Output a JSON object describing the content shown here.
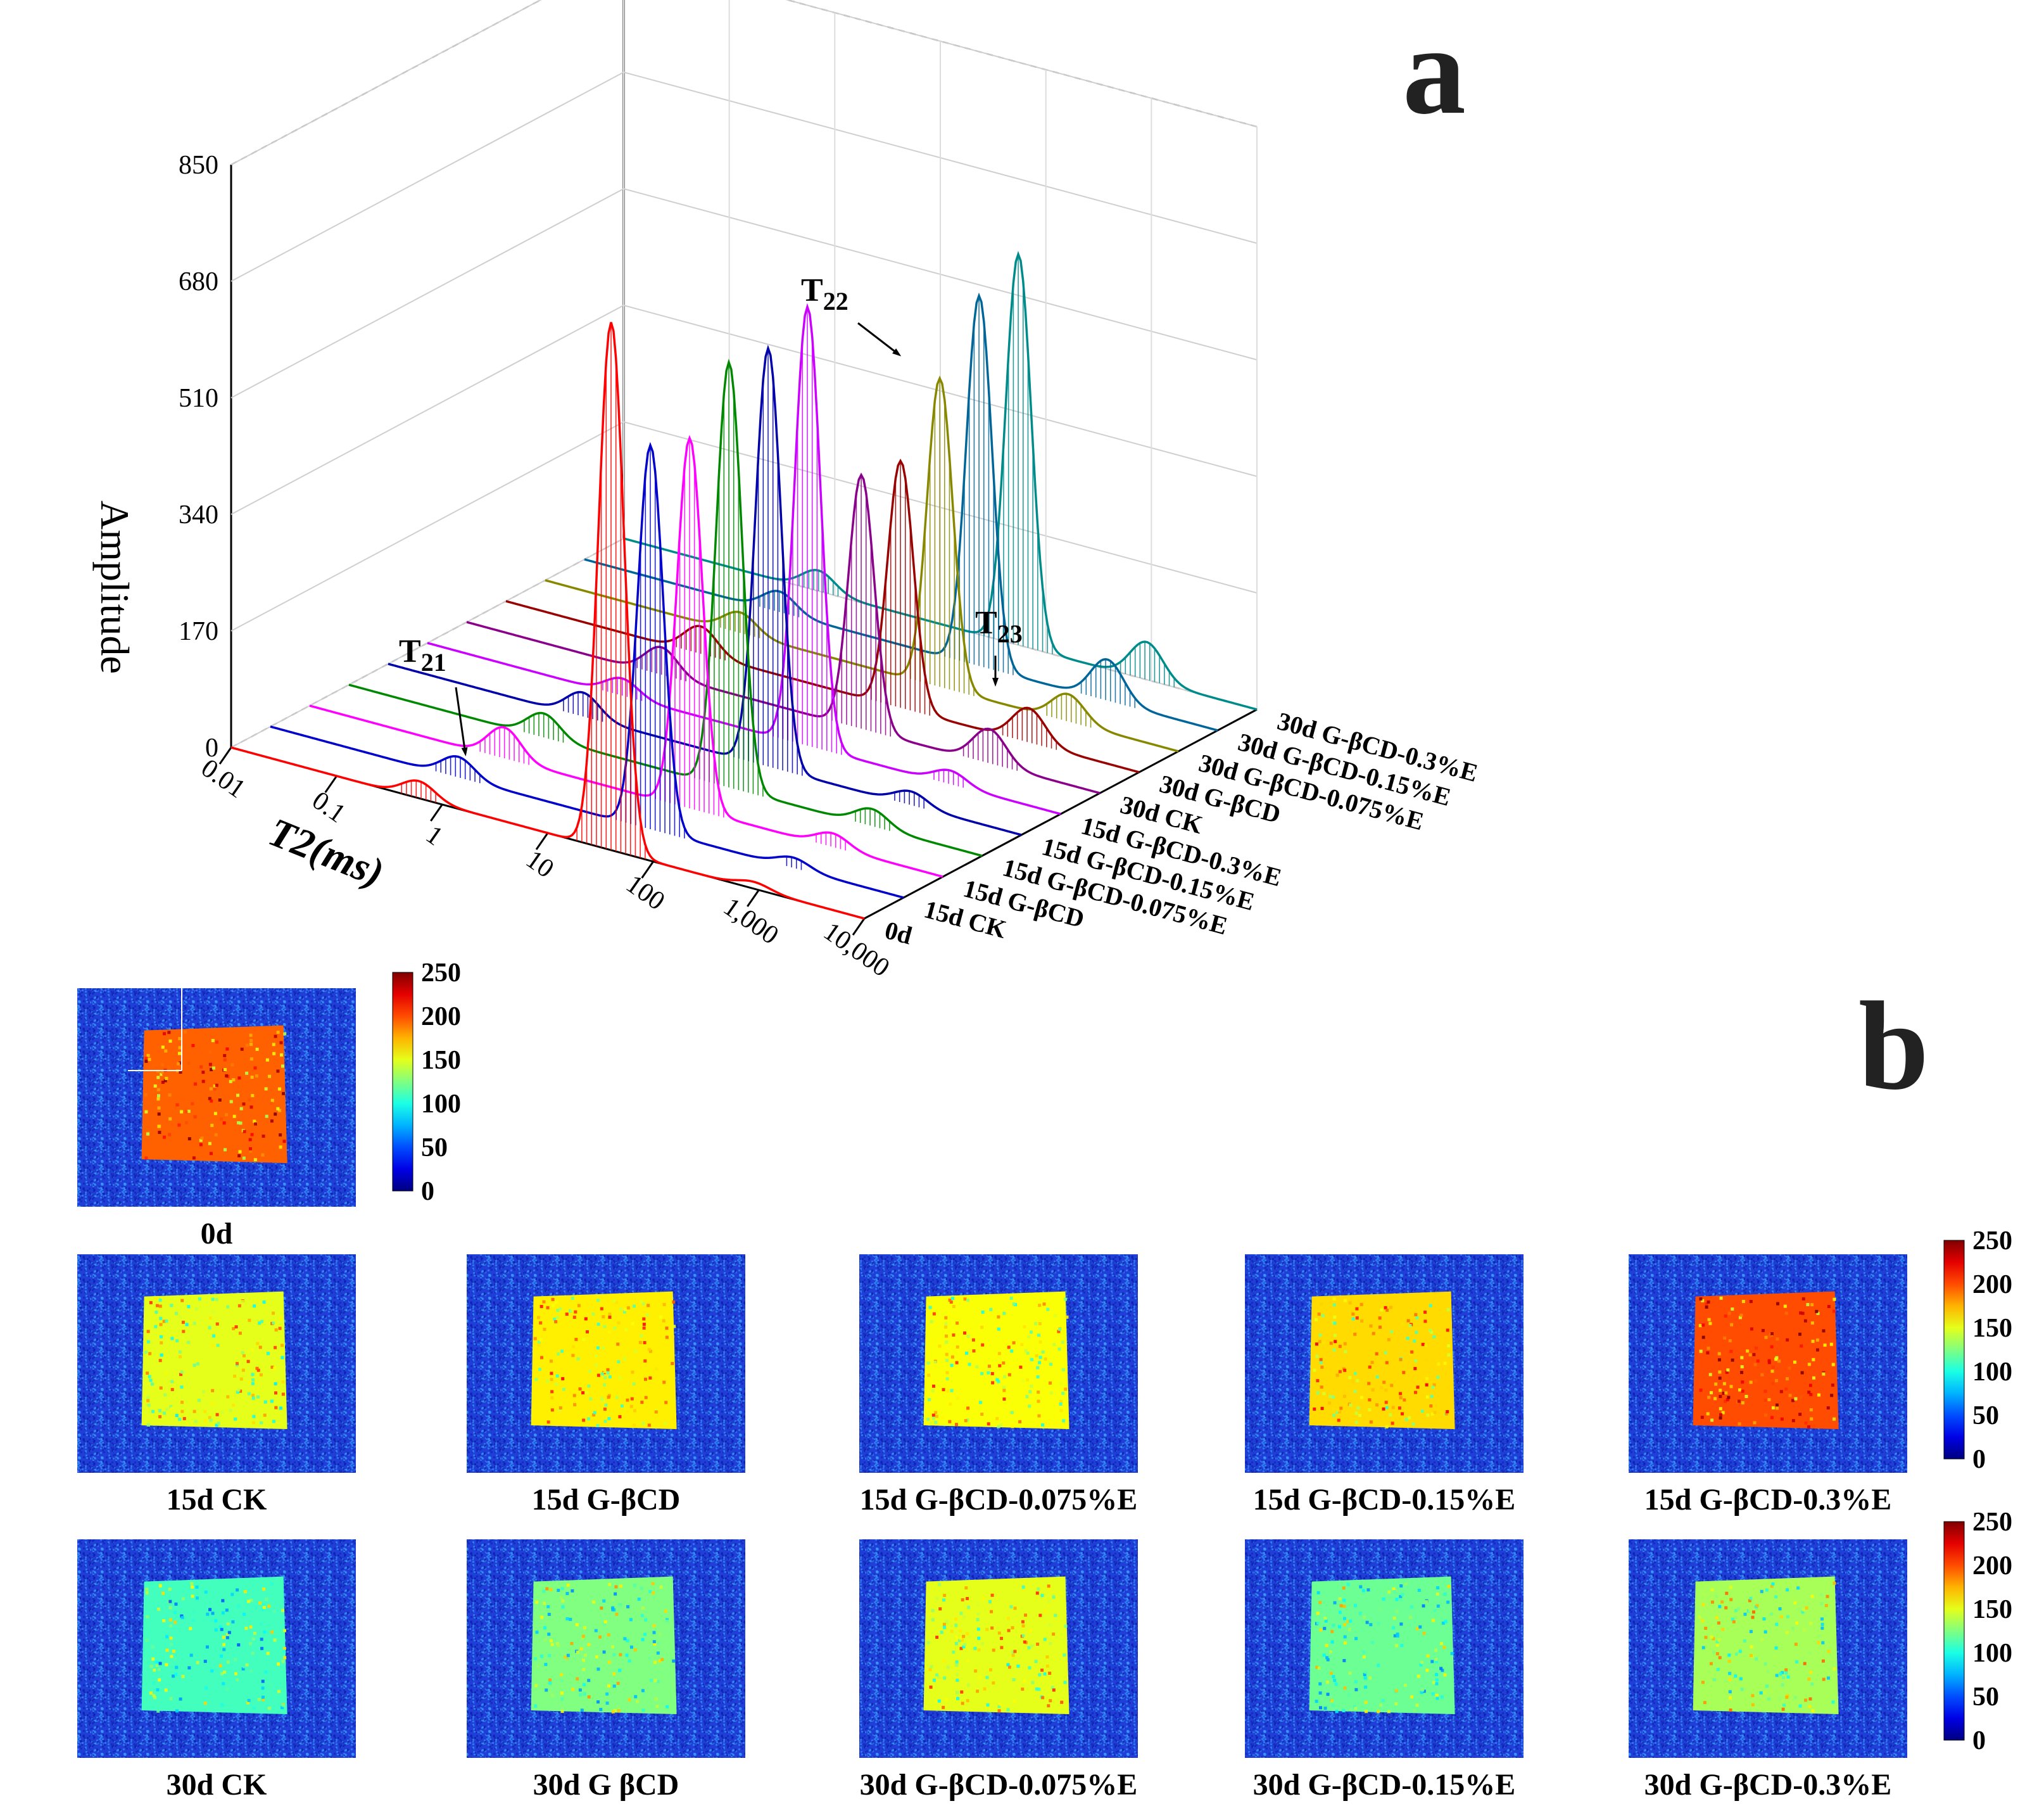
{
  "chart_data": [
    {
      "panel": "a",
      "type": "line",
      "subtype": "3d-waterfall",
      "title": "",
      "xlabel": "T2(ms)",
      "ylabel": "Amplitude",
      "x_ticks": [
        "0.01",
        "0.1",
        "1",
        "10",
        "100",
        "1,000",
        "10,000"
      ],
      "y_ticks": [
        "0",
        "170",
        "340",
        "510",
        "680",
        "850"
      ],
      "ylim": [
        0,
        850
      ],
      "xlim_ms": [
        0.01,
        10000
      ],
      "annotations": [
        {
          "base": "T",
          "sub": "21"
        },
        {
          "base": "T",
          "sub": "22"
        },
        {
          "base": "T",
          "sub": "23"
        }
      ],
      "series": [
        {
          "name": "0d",
          "color": "#ff0000",
          "peaks": [
            {
              "t2": 0.6,
              "amp": 25
            },
            {
              "t2": 40,
              "amp": 770
            },
            {
              "t2": 900,
              "amp": 10
            }
          ]
        },
        {
          "name": "15d CK",
          "color": "#0000cc",
          "peaks": [
            {
              "t2": 0.6,
              "amp": 30
            },
            {
              "t2": 40,
              "amp": 560
            },
            {
              "t2": 900,
              "amp": 15
            }
          ]
        },
        {
          "name": "15d G-βCD",
          "color": "#ff00ff",
          "peaks": [
            {
              "t2": 0.7,
              "amp": 45
            },
            {
              "t2": 40,
              "amp": 540
            },
            {
              "t2": 900,
              "amp": 20
            }
          ]
        },
        {
          "name": "15d G-βCD-0.075%E",
          "color": "#008800",
          "peaks": [
            {
              "t2": 0.7,
              "amp": 35
            },
            {
              "t2": 40,
              "amp": 620
            },
            {
              "t2": 900,
              "amp": 25
            }
          ]
        },
        {
          "name": "15d G-βCD-0.15%E",
          "color": "#0000aa",
          "peaks": [
            {
              "t2": 0.7,
              "amp": 35
            },
            {
              "t2": 40,
              "amp": 610
            },
            {
              "t2": 900,
              "amp": 20
            }
          ]
        },
        {
          "name": "15d G-βCD-0.3%E",
          "color": "#cc00ff",
          "peaks": [
            {
              "t2": 0.7,
              "amp": 25
            },
            {
              "t2": 40,
              "amp": 640
            },
            {
              "t2": 900,
              "amp": 20
            }
          ]
        },
        {
          "name": "30d CK",
          "color": "#8b008b",
          "peaks": [
            {
              "t2": 0.7,
              "amp": 40
            },
            {
              "t2": 55,
              "amp": 370
            },
            {
              "t2": 900,
              "amp": 50
            }
          ]
        },
        {
          "name": "30d G-βCD",
          "color": "#990000",
          "peaks": [
            {
              "t2": 0.7,
              "amp": 40
            },
            {
              "t2": 55,
              "amp": 360
            },
            {
              "t2": 900,
              "amp": 50
            }
          ]
        },
        {
          "name": "30d G-βCD-0.075%E",
          "color": "#888800",
          "peaks": [
            {
              "t2": 0.7,
              "amp": 30
            },
            {
              "t2": 55,
              "amp": 450
            },
            {
              "t2": 900,
              "amp": 40
            }
          ]
        },
        {
          "name": "30d G-βCD-0.15%E",
          "color": "#006699",
          "peaks": [
            {
              "t2": 0.7,
              "amp": 30
            },
            {
              "t2": 55,
              "amp": 540
            },
            {
              "t2": 900,
              "amp": 60
            }
          ]
        },
        {
          "name": "30d G-βCD-0.3%E",
          "color": "#008b8b",
          "peaks": [
            {
              "t2": 0.7,
              "amp": 30
            },
            {
              "t2": 55,
              "amp": 570
            },
            {
              "t2": 900,
              "amp": 55
            }
          ]
        }
      ]
    },
    {
      "panel": "b",
      "type": "heatmap",
      "subtype": "MRI pseudo-color images",
      "colorbar_ticks": [
        "0",
        "50",
        "100",
        "150",
        "200",
        "250"
      ],
      "colorbar_range": [
        0,
        250
      ],
      "images": [
        {
          "label": "0d",
          "mean_intensity": 195
        },
        {
          "label": "15d CK",
          "mean_intensity": 150
        },
        {
          "label": "15d G-βCD",
          "mean_intensity": 160
        },
        {
          "label": "15d G-βCD-0.075%E",
          "mean_intensity": 155
        },
        {
          "label": "15d G-βCD-0.15%E",
          "mean_intensity": 165
        },
        {
          "label": "15d G-βCD-0.3%E",
          "mean_intensity": 200
        },
        {
          "label": "30d CK",
          "mean_intensity": 110
        },
        {
          "label": "30d G βCD",
          "mean_intensity": 125
        },
        {
          "label": "30d G-βCD-0.075%E",
          "mean_intensity": 150
        },
        {
          "label": "30d G-βCD-0.15%E",
          "mean_intensity": 120
        },
        {
          "label": "30d G-βCD-0.3%E",
          "mean_intensity": 135
        }
      ]
    }
  ],
  "panel_letters": {
    "a": "a",
    "b": "b"
  },
  "colors": {
    "background": "#ffffff",
    "outside": "#1f3fd8"
  }
}
